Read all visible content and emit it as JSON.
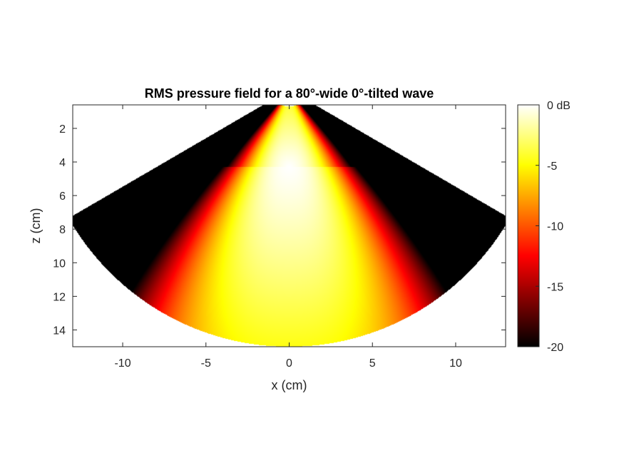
{
  "chart_data": {
    "type": "heatmap",
    "title": "RMS pressure field for a 80°-wide 0°-tilted wave",
    "xlabel": "x (cm)",
    "ylabel": "z (cm)",
    "xlim": [
      -13,
      13
    ],
    "ylim": [
      0.6,
      15
    ],
    "y_reversed": true,
    "xticks": [
      -10,
      -5,
      0,
      5,
      10
    ],
    "xtick_labels": [
      "-10",
      "-5",
      "0",
      "5",
      "10"
    ],
    "yticks": [
      2,
      4,
      6,
      8,
      10,
      12,
      14
    ],
    "ytick_labels": [
      "2",
      "4",
      "6",
      "8",
      "10",
      "12",
      "14"
    ],
    "sector": {
      "apex_z": -0.3,
      "half_angle_deg": 60,
      "inner_radius": 1.0,
      "outer_radius": 15.3
    },
    "beam": {
      "peak_x": 0,
      "peak_z": 4.3,
      "half_width_deg": 40,
      "tilt_deg": 0
    },
    "colormap": "hot",
    "colormap_stops": [
      "#000000",
      "#ff0000",
      "#ffff00",
      "#ffffff"
    ],
    "colorbar": {
      "range": [
        -20,
        0
      ],
      "ticks": [
        0,
        -5,
        -10,
        -15,
        -20
      ],
      "tick_labels": [
        "0 dB",
        "-5",
        "-10",
        "-15",
        "-20"
      ]
    }
  }
}
